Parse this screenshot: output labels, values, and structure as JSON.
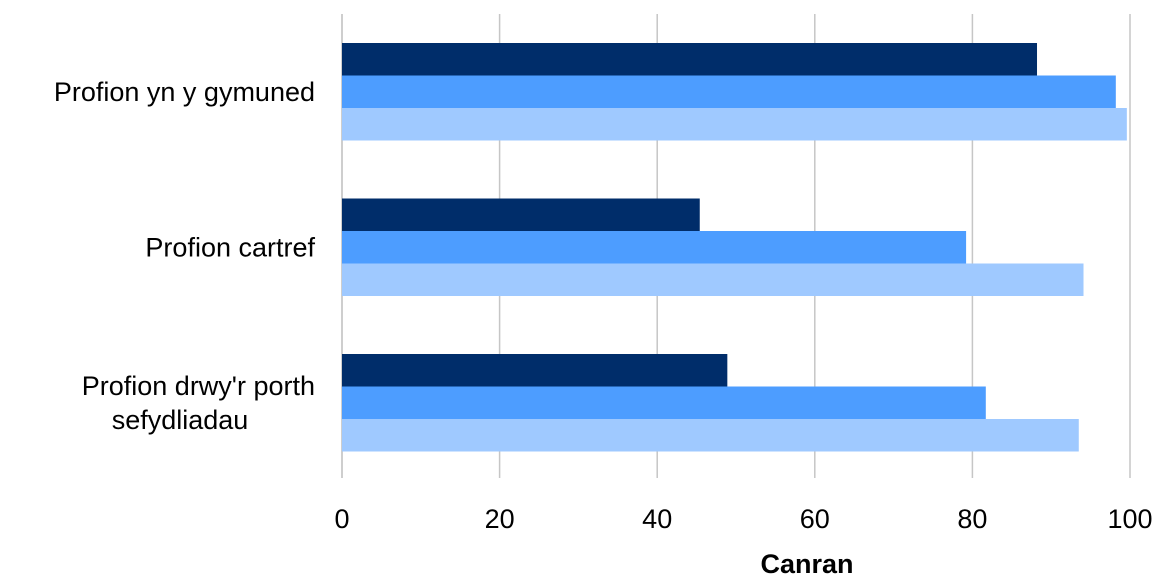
{
  "chart_data": {
    "type": "bar",
    "orientation": "horizontal",
    "categories": [
      "Profion yn y gymuned",
      "Profion cartref",
      "Profion drwy'r porth sefydliadau"
    ],
    "category_lines": [
      [
        "Profion yn y gymuned"
      ],
      [
        "Profion cartref"
      ],
      [
        "Profion drwy'r porth",
        "sefydliadau"
      ]
    ],
    "series": [
      {
        "color": "#002d6a",
        "values": [
          88.2,
          45.4,
          48.9
        ]
      },
      {
        "color": "#4d9dff",
        "values": [
          98.2,
          79.2,
          81.7
        ]
      },
      {
        "color": "#9fc9ff",
        "values": [
          99.6,
          94.1,
          93.5
        ]
      }
    ],
    "xlabel": "Canran",
    "xlim": [
      0,
      100
    ],
    "xticks": [
      0,
      20,
      40,
      60,
      80,
      100
    ],
    "grid": true,
    "legend": "none"
  }
}
